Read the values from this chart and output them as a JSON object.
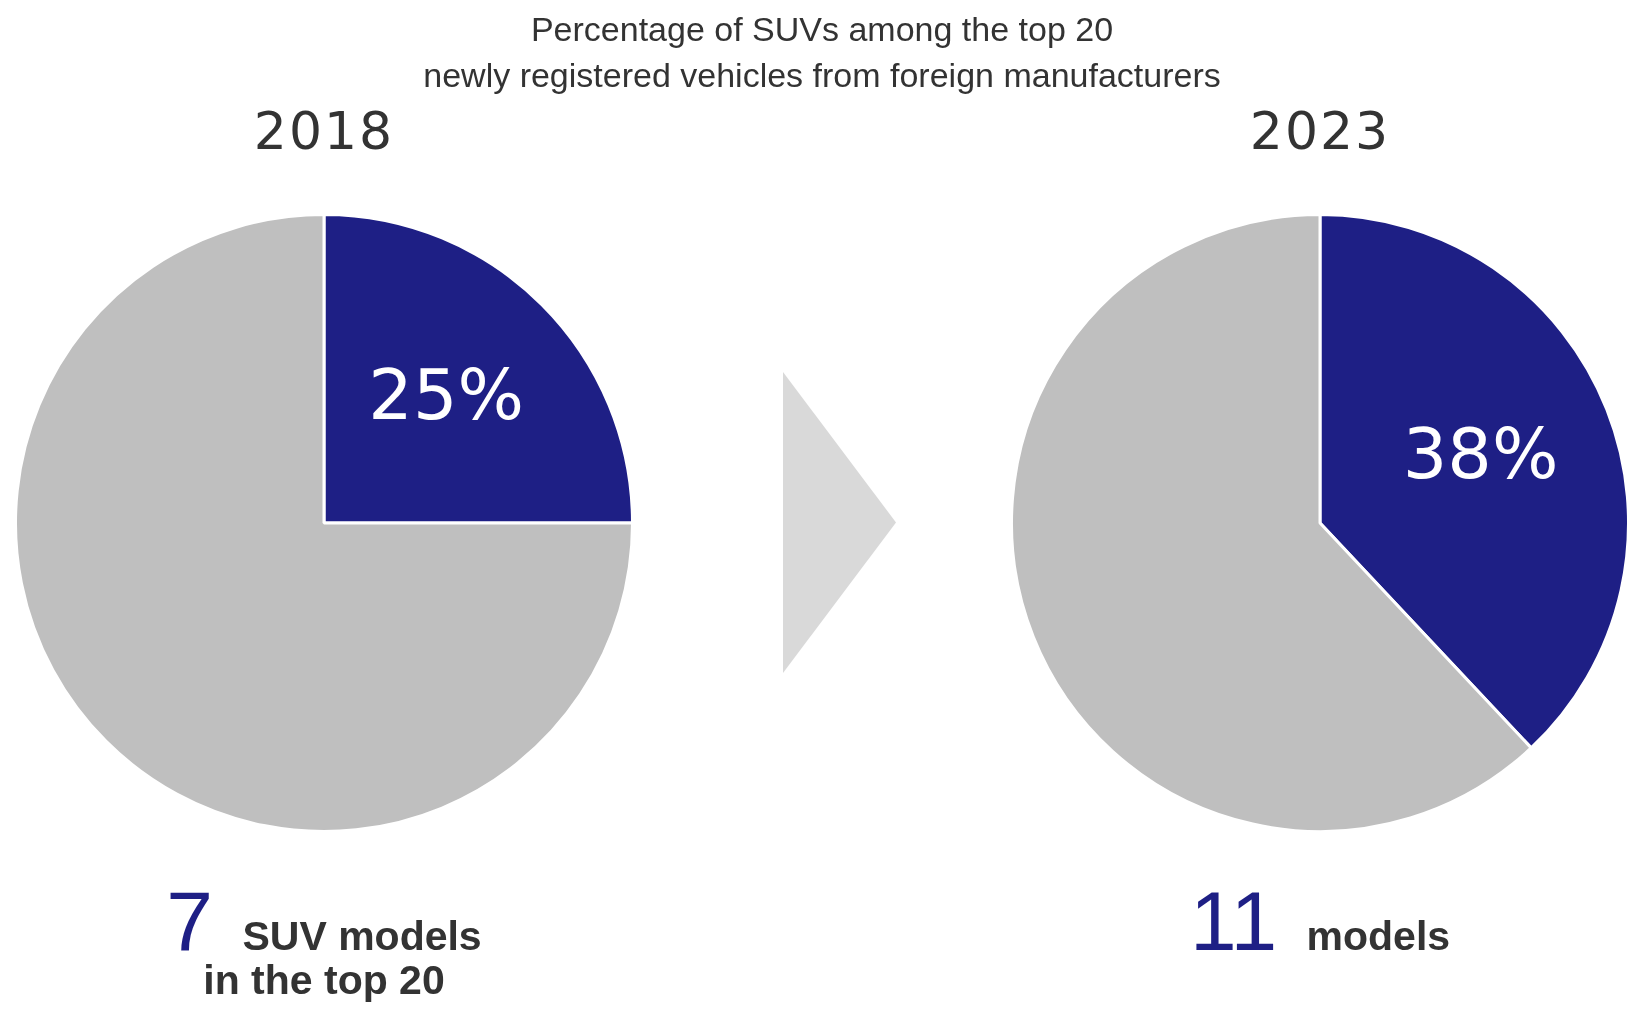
{
  "chart_data": [
    {
      "type": "pie",
      "title": "Percentage of SUVs among the top 20\nnewly registered vehicles from foreign manufacturers",
      "subtitle": "2018",
      "categories": [
        null,
        null
      ],
      "values": [
        25,
        75
      ],
      "colors": [
        "#1e1f85",
        "#bfbfbf"
      ],
      "value_labels": [
        "25%",
        null
      ],
      "annotations": [
        "7",
        "SUV models in the top 20"
      ]
    },
    {
      "type": "pie",
      "subtitle": "2023",
      "categories": [
        null,
        null
      ],
      "values": [
        38,
        62
      ],
      "colors": [
        "#1e1f85",
        "#bfbfbf"
      ],
      "value_labels": [
        "38%",
        null
      ],
      "annotations": [
        "11",
        "models"
      ]
    }
  ]
}
